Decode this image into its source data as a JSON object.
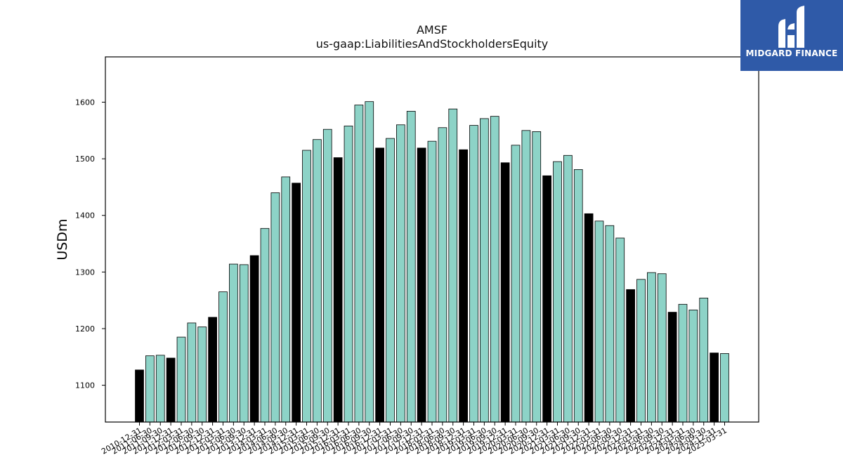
{
  "chart_data": {
    "type": "bar",
    "title": "AMSF",
    "subtitle": "us-gaap:LiabilitiesAndStockholdersEquity",
    "xlabel": "",
    "ylabel": "USDm",
    "ylim": [
      1035,
      1680
    ],
    "yticks": [
      1100,
      1200,
      1300,
      1400,
      1500,
      1600
    ],
    "grid": false,
    "colors": {
      "quarterly": "#8dd3c7",
      "annual": "#000000",
      "edge": "#000000"
    },
    "categories": [
      "2010-12-31",
      "2011-06-30",
      "2011-09-30",
      "2011-12-31",
      "2012-03-31",
      "2012-06-30",
      "2012-09-30",
      "2012-12-31",
      "2013-03-31",
      "2013-06-30",
      "2013-09-30",
      "2013-12-31",
      "2014-03-31",
      "2014-06-30",
      "2014-09-30",
      "2014-12-31",
      "2015-03-31",
      "2015-06-30",
      "2015-09-30",
      "2015-12-31",
      "2016-03-31",
      "2016-06-30",
      "2016-09-30",
      "2016-12-31",
      "2017-03-31",
      "2017-06-30",
      "2017-09-30",
      "2017-12-31",
      "2018-03-31",
      "2018-06-30",
      "2018-09-30",
      "2018-12-31",
      "2019-03-31",
      "2019-06-30",
      "2019-09-30",
      "2019-12-31",
      "2020-03-31",
      "2020-06-30",
      "2020-09-30",
      "2020-12-31",
      "2021-03-31",
      "2021-06-30",
      "2021-09-30",
      "2021-12-31",
      "2022-03-31",
      "2022-06-30",
      "2022-09-30",
      "2022-12-31",
      "2023-03-31",
      "2023-06-30",
      "2023-09-30",
      "2023-12-31",
      "2024-03-31",
      "2024-06-30",
      "2024-09-30",
      "2024-12-31",
      "2025-03-31"
    ],
    "values": [
      1127,
      1152,
      1153,
      1148,
      1185,
      1210,
      1203,
      1220,
      1265,
      1314,
      1313,
      1329,
      1377,
      1440,
      1468,
      1457,
      1515,
      1534,
      1552,
      1502,
      1558,
      1595,
      1601,
      1519,
      1536,
      1560,
      1584,
      1519,
      1531,
      1555,
      1588,
      1516,
      1559,
      1571,
      1575,
      1493,
      1524,
      1550,
      1548,
      1470,
      1495,
      1506,
      1481,
      1403,
      1390,
      1382,
      1360,
      1269,
      1287,
      1299,
      1297,
      1229,
      1243,
      1233,
      1254,
      1157,
      1156
    ]
  },
  "logo": {
    "text": "MIDGARD FINANCE"
  }
}
